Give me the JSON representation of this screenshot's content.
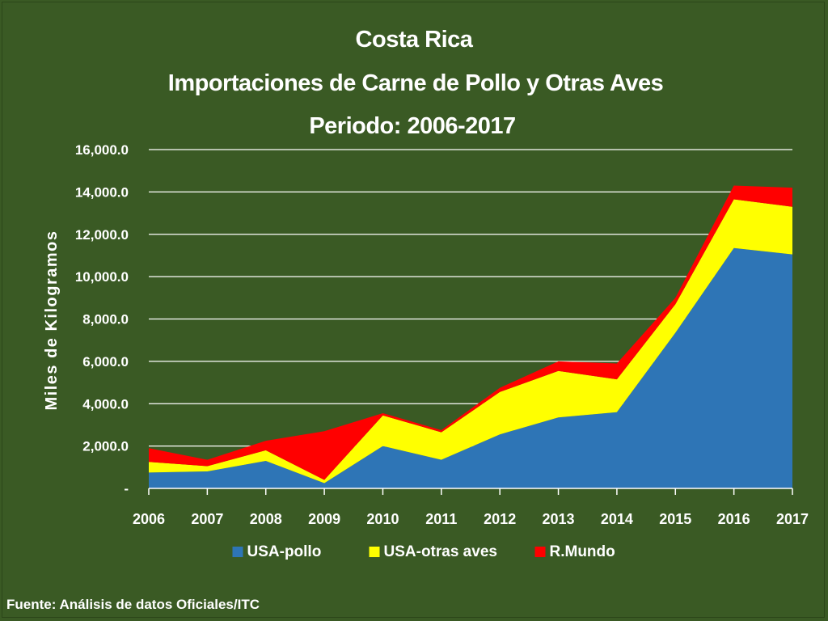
{
  "chart_data": {
    "type": "area",
    "stacked": true,
    "title": [
      "Costa Rica",
      "Importaciones de Carne de Pollo y Otras Aves",
      "Periodo: 2006-2017"
    ],
    "ylabel": "Miles de Kilogramos",
    "xlabel": "",
    "categories": [
      "2006",
      "2007",
      "2008",
      "2009",
      "2010",
      "2011",
      "2012",
      "2013",
      "2014",
      "2015",
      "2016",
      "2017"
    ],
    "ylim": [
      0,
      16000
    ],
    "yticks": [
      0,
      2000,
      4000,
      6000,
      8000,
      10000,
      12000,
      14000,
      16000
    ],
    "ytick_labels": [
      "-",
      "2,000.0",
      "4,000.0",
      "6,000.0",
      "8,000.0",
      "10,000.0",
      "12,000.0",
      "14,000.0",
      "16,000.0"
    ],
    "grid": true,
    "legend_position": "bottom",
    "series": [
      {
        "name": "USA-pollo",
        "color": "#2e75b6",
        "values": [
          750,
          800,
          1300,
          250,
          2000,
          1350,
          2550,
          3350,
          3600,
          7350,
          11350,
          11050
        ]
      },
      {
        "name": "USA-otras aves",
        "color": "#ffff00",
        "values": [
          500,
          250,
          500,
          150,
          1450,
          1300,
          2000,
          2200,
          1550,
          1350,
          2300,
          2250
        ]
      },
      {
        "name": "R.Mundo",
        "color": "#ff0000",
        "values": [
          650,
          300,
          450,
          2300,
          100,
          100,
          200,
          450,
          750,
          300,
          650,
          900
        ]
      }
    ]
  },
  "source_note": "Fuente: Análisis de datos Oficiales/ITC"
}
